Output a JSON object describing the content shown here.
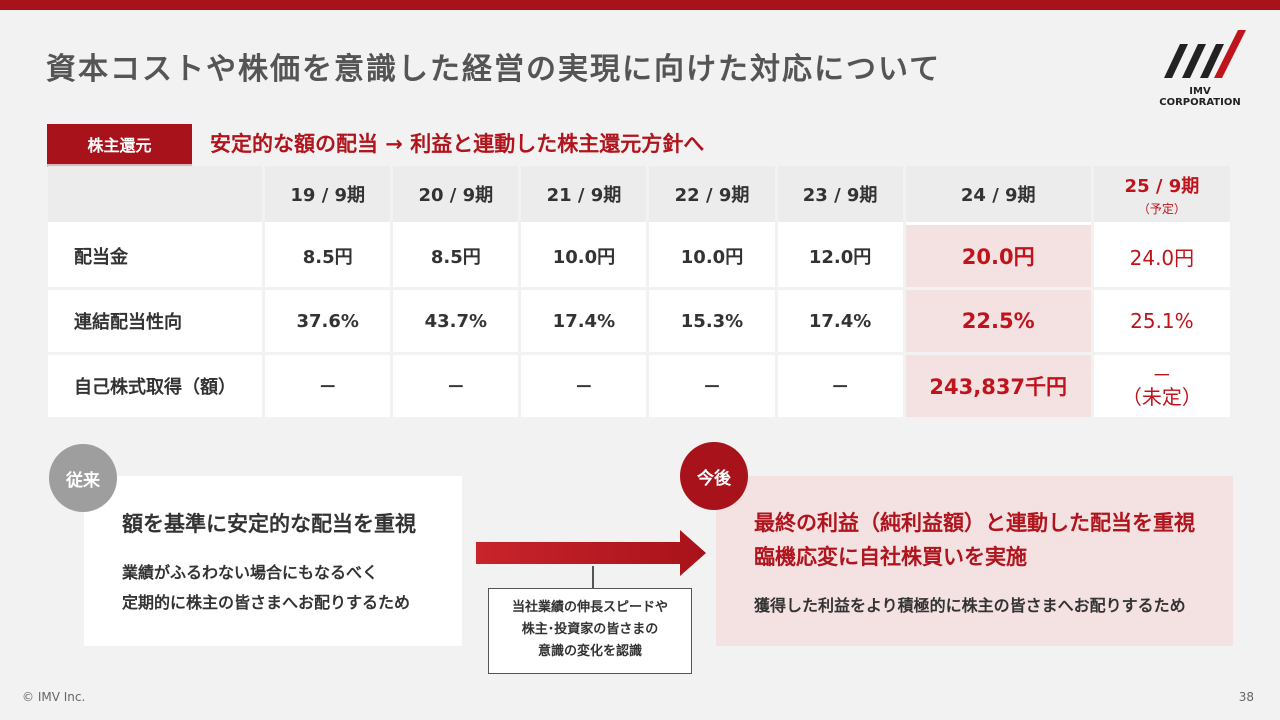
{
  "title": "資本コストや株価を意識した経営の実現に向けた対応について",
  "logo": {
    "text": "IMV CORPORATION"
  },
  "section": {
    "tag": "株主還元",
    "headline": "安定的な額の配当 → 利益と連動した株主還元方針へ"
  },
  "table": {
    "columns": [
      "19 / 9期",
      "20 / 9期",
      "21 / 9期",
      "22 / 9期",
      "23 / 9期",
      "24 / 9期",
      "25 / 9期"
    ],
    "plan_note": "（予定）",
    "rows": [
      {
        "label": "配当金",
        "values": [
          "8.5円",
          "8.5円",
          "10.0円",
          "10.0円",
          "12.0円",
          "20.0円",
          "24.0円"
        ]
      },
      {
        "label": "連結配当性向",
        "values": [
          "37.6%",
          "43.7%",
          "17.4%",
          "15.3%",
          "17.4%",
          "22.5%",
          "25.1%"
        ]
      },
      {
        "label": "自己株式取得（額）",
        "values": [
          "－",
          "－",
          "－",
          "－",
          "－",
          "243,837千円",
          "－"
        ],
        "plan_extra": "（未定）"
      }
    ]
  },
  "past": {
    "badge": "従来",
    "title": "額を基準に安定的な配当を重視",
    "body_line1": "業績がふるわない場合にもなるべく",
    "body_line2": "定期的に株主の皆さまへお配りするため"
  },
  "note": {
    "line1": "当社業績の伸長スピードや",
    "line2": "株主･投資家の皆さまの",
    "line3": "意識の変化を認識"
  },
  "future": {
    "badge": "今後",
    "title_line1": "最終の利益（純利益額）と連動した配当を重視",
    "title_line2": "臨機応変に自社株買いを実施",
    "body": "獲得した利益をより積極的に株主の皆さまへお配りするため"
  },
  "footer": {
    "copyright": "© IMV Inc.",
    "page": "38"
  },
  "colors": {
    "accent": "#a8121a",
    "highlight": "#f4e1e2",
    "gray": "#9e9e9e"
  }
}
